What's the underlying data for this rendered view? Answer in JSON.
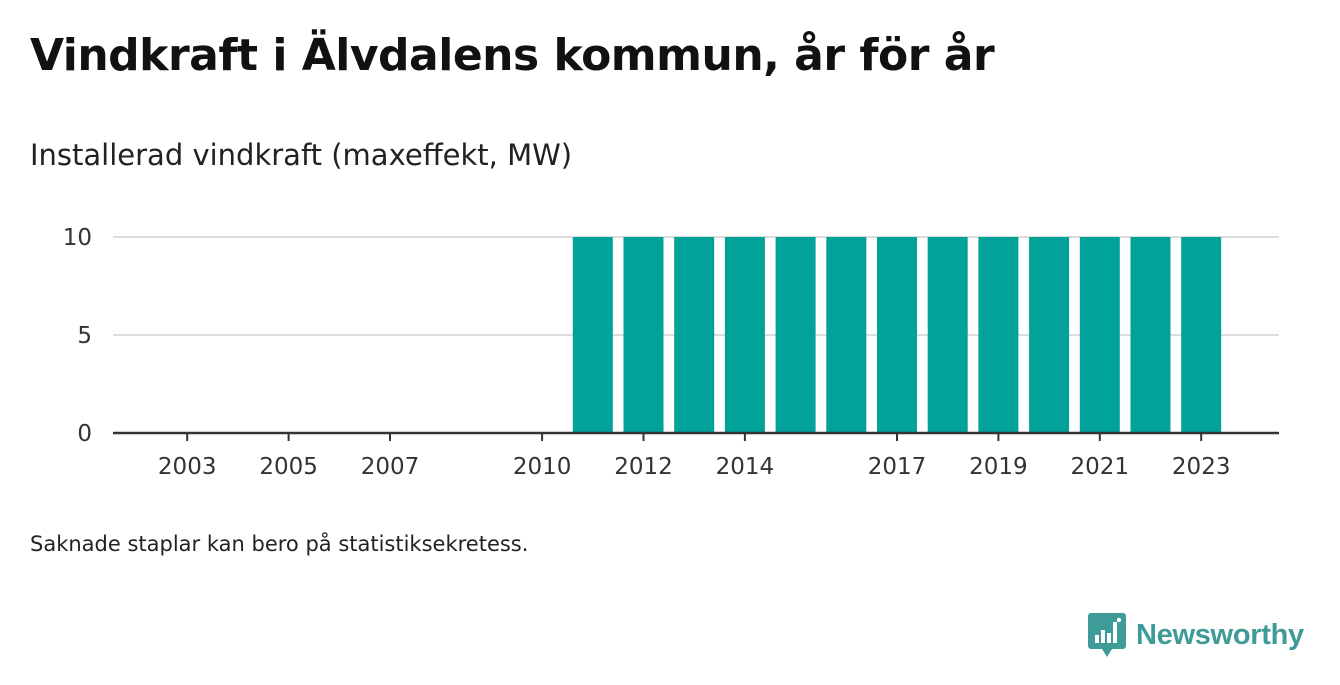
{
  "title": "Vindkraft i Älvdalens kommun, år för år",
  "subtitle": "Installerad vindkraft (maxeffekt, MW)",
  "footnote": "Saknade staplar kan bero på statistiksekretess.",
  "brand": {
    "name": "Newsworthy",
    "icon": "newsworthy-logo-icon",
    "color": "#3e9b98"
  },
  "colors": {
    "bar": "#00a29a",
    "grid": "#dddddd",
    "axis": "#333333"
  },
  "chart_data": {
    "type": "bar",
    "title": "Vindkraft i Älvdalens kommun, år för år",
    "subtitle": "Installerad vindkraft (maxeffekt, MW)",
    "xlabel": "",
    "ylabel": "",
    "categories": [
      "2002",
      "2003",
      "2004",
      "2005",
      "2006",
      "2007",
      "2008",
      "2009",
      "2010",
      "2011",
      "2012",
      "2013",
      "2014",
      "2015",
      "2016",
      "2017",
      "2018",
      "2019",
      "2020",
      "2021",
      "2022",
      "2023"
    ],
    "values": [
      null,
      null,
      null,
      null,
      null,
      null,
      null,
      null,
      null,
      10,
      10,
      10,
      10,
      10,
      10,
      10,
      10,
      10,
      10,
      10,
      10,
      10
    ],
    "x_tick_labels": [
      "2003",
      "2005",
      "2007",
      "2010",
      "2012",
      "2014",
      "2017",
      "2019",
      "2021",
      "2023"
    ],
    "y_ticks": [
      0,
      5,
      10
    ],
    "ylim": [
      0,
      10
    ],
    "grid": true,
    "legend": "none"
  }
}
